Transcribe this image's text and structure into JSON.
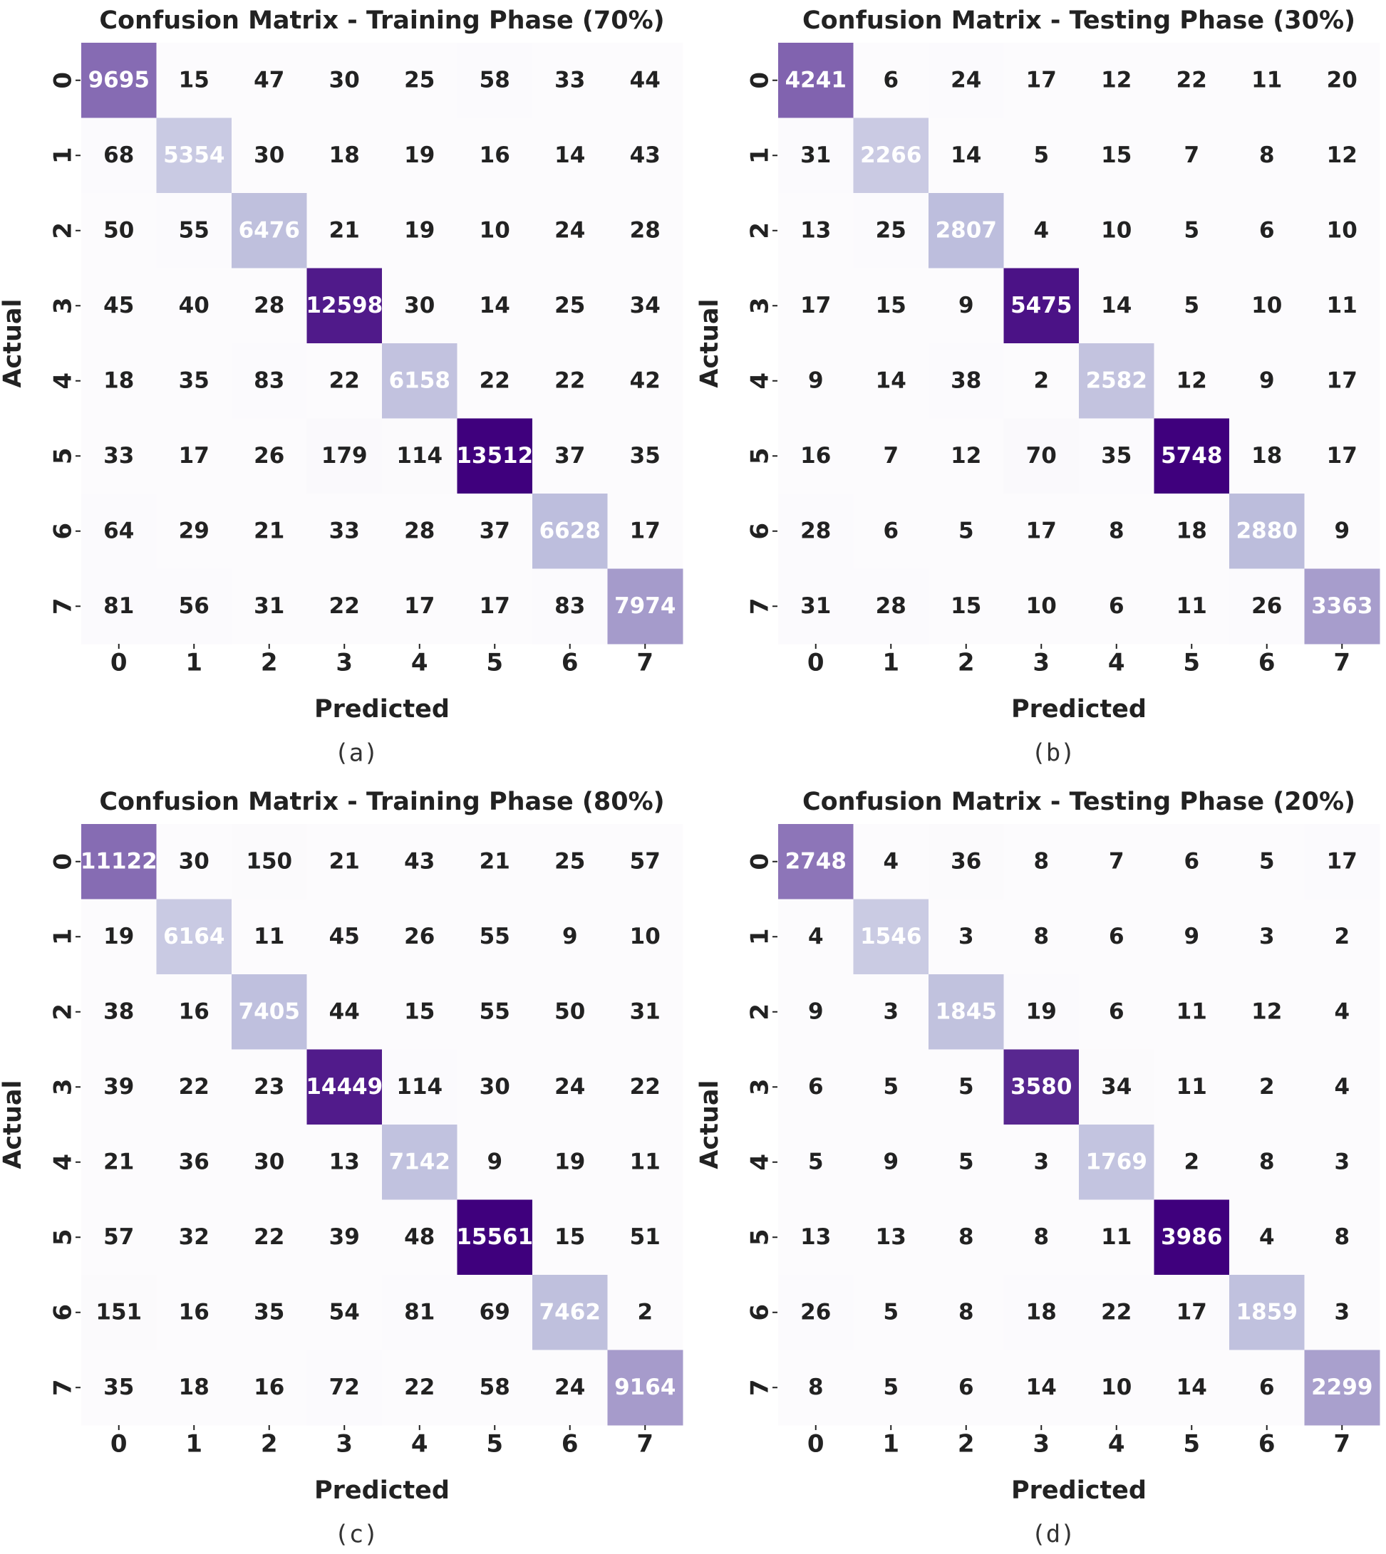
{
  "colormap": {
    "low": "#fcfbfd",
    "mid": "#bcbddc",
    "high": "#3f007d"
  },
  "chart_data": [
    {
      "type": "heatmap",
      "caption": "(a)",
      "title": "Confusion Matrix - Training Phase (70%)",
      "xlabel": "Predicted",
      "ylabel": "Actual",
      "categories": [
        "0",
        "1",
        "2",
        "3",
        "4",
        "5",
        "6",
        "7"
      ],
      "matrix": [
        [
          9695,
          15,
          47,
          30,
          25,
          58,
          33,
          44
        ],
        [
          68,
          5354,
          30,
          18,
          19,
          16,
          14,
          43
        ],
        [
          50,
          55,
          6476,
          21,
          19,
          10,
          24,
          28
        ],
        [
          45,
          40,
          28,
          12598,
          30,
          14,
          25,
          34
        ],
        [
          18,
          35,
          83,
          22,
          6158,
          22,
          22,
          42
        ],
        [
          33,
          17,
          26,
          179,
          114,
          13512,
          37,
          35
        ],
        [
          64,
          29,
          21,
          33,
          28,
          37,
          6628,
          17
        ],
        [
          81,
          56,
          31,
          22,
          17,
          17,
          83,
          7974
        ]
      ]
    },
    {
      "type": "heatmap",
      "caption": "(b)",
      "title": "Confusion Matrix - Testing Phase (30%)",
      "xlabel": "Predicted",
      "ylabel": "Actual",
      "categories": [
        "0",
        "1",
        "2",
        "3",
        "4",
        "5",
        "6",
        "7"
      ],
      "matrix": [
        [
          4241,
          6,
          24,
          17,
          12,
          22,
          11,
          20
        ],
        [
          31,
          2266,
          14,
          5,
          15,
          7,
          8,
          12
        ],
        [
          13,
          25,
          2807,
          4,
          10,
          5,
          6,
          10
        ],
        [
          17,
          15,
          9,
          5475,
          14,
          5,
          10,
          11
        ],
        [
          9,
          14,
          38,
          2,
          2582,
          12,
          9,
          17
        ],
        [
          16,
          7,
          12,
          70,
          35,
          5748,
          18,
          17
        ],
        [
          28,
          6,
          5,
          17,
          8,
          18,
          2880,
          9
        ],
        [
          31,
          28,
          15,
          10,
          6,
          11,
          26,
          3363
        ]
      ]
    },
    {
      "type": "heatmap",
      "caption": "(c)",
      "title": "Confusion Matrix - Training Phase (80%)",
      "xlabel": "Predicted",
      "ylabel": "Actual",
      "categories": [
        "0",
        "1",
        "2",
        "3",
        "4",
        "5",
        "6",
        "7"
      ],
      "matrix": [
        [
          11122,
          30,
          150,
          21,
          43,
          21,
          25,
          57
        ],
        [
          19,
          6164,
          11,
          45,
          26,
          55,
          9,
          10
        ],
        [
          38,
          16,
          7405,
          44,
          15,
          55,
          50,
          31
        ],
        [
          39,
          22,
          23,
          14449,
          114,
          30,
          24,
          22
        ],
        [
          21,
          36,
          30,
          13,
          7142,
          9,
          19,
          11
        ],
        [
          57,
          32,
          22,
          39,
          48,
          15561,
          15,
          51
        ],
        [
          151,
          16,
          35,
          54,
          81,
          69,
          7462,
          2
        ],
        [
          35,
          18,
          16,
          72,
          22,
          58,
          24,
          9164
        ]
      ]
    },
    {
      "type": "heatmap",
      "caption": "(d)",
      "title": "Confusion Matrix - Testing Phase (20%)",
      "xlabel": "Predicted",
      "ylabel": "Actual",
      "categories": [
        "0",
        "1",
        "2",
        "3",
        "4",
        "5",
        "6",
        "7"
      ],
      "matrix": [
        [
          2748,
          4,
          36,
          8,
          7,
          6,
          5,
          17
        ],
        [
          4,
          1546,
          3,
          8,
          6,
          9,
          3,
          2
        ],
        [
          9,
          3,
          1845,
          19,
          6,
          11,
          12,
          4
        ],
        [
          6,
          5,
          5,
          3580,
          34,
          11,
          2,
          4
        ],
        [
          5,
          9,
          5,
          3,
          1769,
          2,
          8,
          3
        ],
        [
          13,
          13,
          8,
          8,
          11,
          3986,
          4,
          8
        ],
        [
          26,
          5,
          8,
          18,
          22,
          17,
          1859,
          3
        ],
        [
          8,
          5,
          6,
          14,
          10,
          14,
          6,
          2299
        ]
      ]
    }
  ]
}
